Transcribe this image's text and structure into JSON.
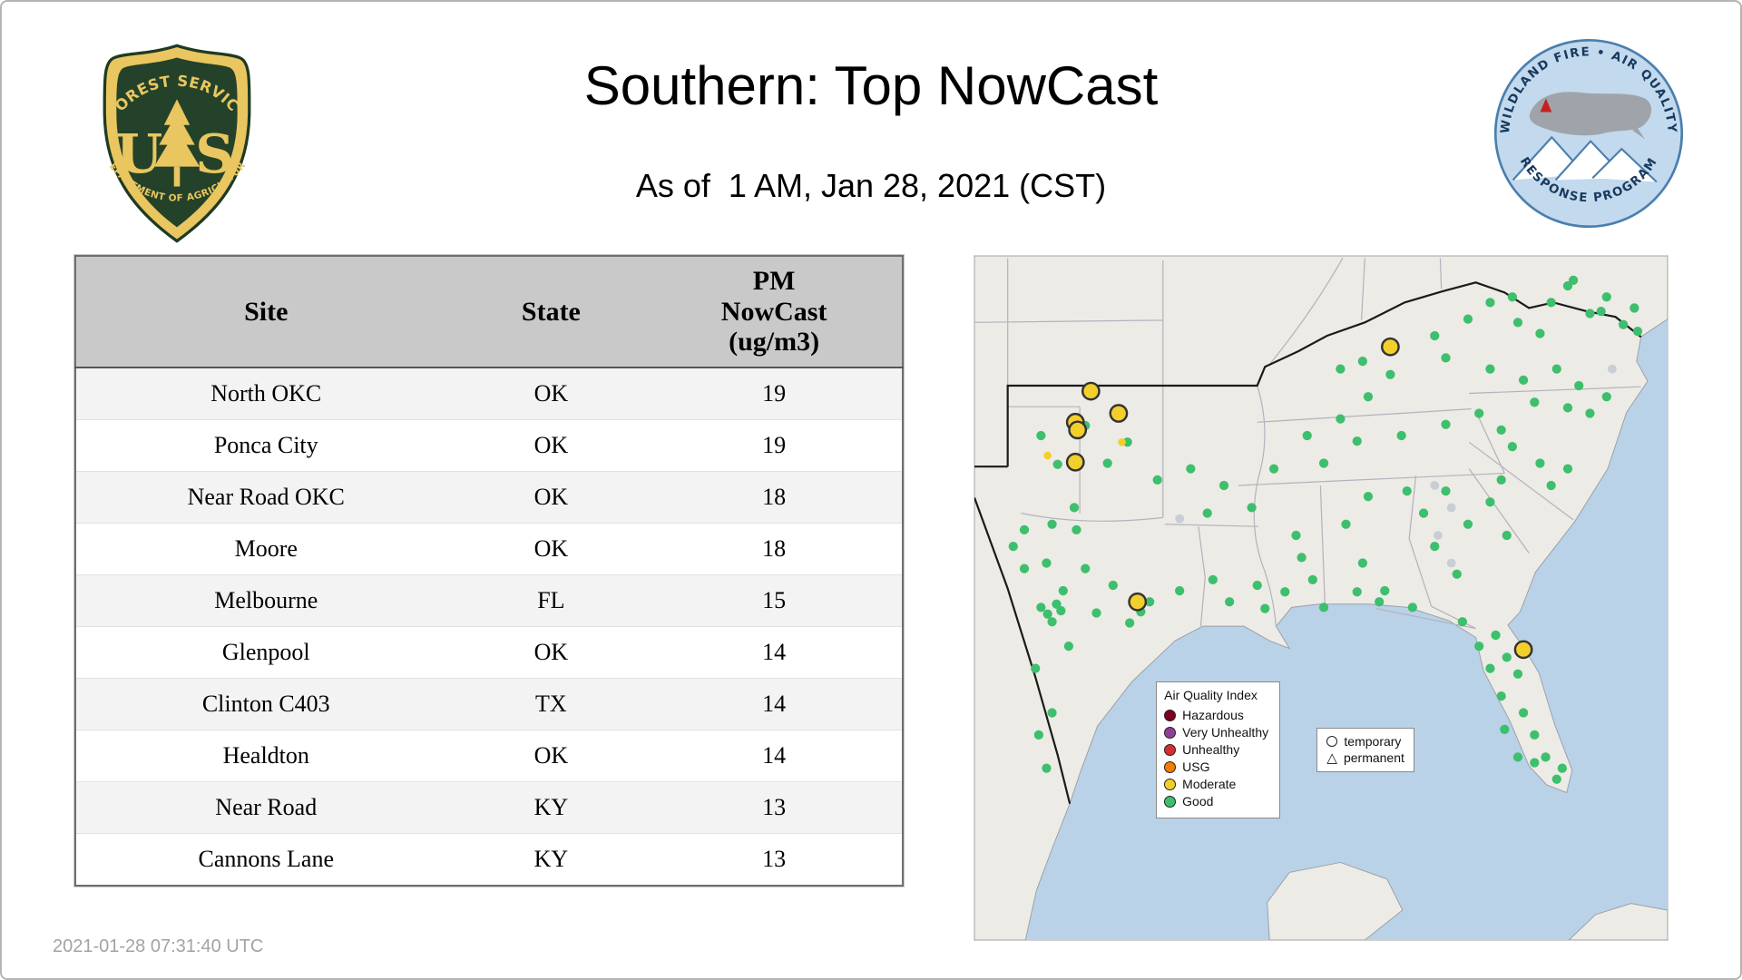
{
  "header": {
    "title": "Southern: Top NowCast",
    "subtitle": "As of  1 AM, Jan 28, 2021 (CST)"
  },
  "logos": {
    "forest_service": {
      "arc_top": "FOREST SERVICE",
      "letter_left": "U",
      "letter_right": "S",
      "arc_bottom": "DEPARTMENT OF AGRICULTURE"
    },
    "wildland": {
      "arc_top": "WILDLAND FIRE • AIR QUALITY",
      "arc_bottom": "RESPONSE PROGRAM"
    }
  },
  "table": {
    "columns": [
      "Site",
      "State",
      "PM NowCast (ug/m3)"
    ],
    "rows": [
      [
        "North OKC",
        "OK",
        "19"
      ],
      [
        "Ponca City",
        "OK",
        "19"
      ],
      [
        "Near Road OKC",
        "OK",
        "18"
      ],
      [
        "Moore",
        "OK",
        "18"
      ],
      [
        "Melbourne",
        "FL",
        "15"
      ],
      [
        "Glenpool",
        "OK",
        "14"
      ],
      [
        "Clinton C403",
        "TX",
        "14"
      ],
      [
        "Healdton",
        "OK",
        "14"
      ],
      [
        "Near Road",
        "KY",
        "13"
      ],
      [
        "Cannons Lane",
        "KY",
        "13"
      ]
    ]
  },
  "map": {
    "legend": {
      "title": "Air Quality Index",
      "items": [
        {
          "label": "Hazardous",
          "color": "#7e0023"
        },
        {
          "label": "Very Unhealthy",
          "color": "#8f3f97"
        },
        {
          "label": "Unhealthy",
          "color": "#d03030"
        },
        {
          "label": "USG",
          "color": "#f57c00"
        },
        {
          "label": "Moderate",
          "color": "#f2cf2a"
        },
        {
          "label": "Good",
          "color": "#3dbf6e"
        }
      ]
    },
    "marker_legend": {
      "temporary": "temporary",
      "permanent": "permanent"
    },
    "colors": {
      "water": "#b9d2e8",
      "land": "#edebe6",
      "good": "#3dbf6e",
      "moderate": "#f2cf2a",
      "gray": "#c9cdd4"
    },
    "markers": {
      "good": [
        [
          60,
          162
        ],
        [
          100,
          153
        ],
        [
          120,
          187
        ],
        [
          165,
          202
        ],
        [
          90,
          227
        ],
        [
          138,
          168
        ],
        [
          75,
          188
        ],
        [
          45,
          247
        ],
        [
          70,
          242
        ],
        [
          92,
          247
        ],
        [
          65,
          277
        ],
        [
          80,
          302
        ],
        [
          100,
          282
        ],
        [
          125,
          297
        ],
        [
          60,
          317
        ],
        [
          70,
          330
        ],
        [
          78,
          320
        ],
        [
          66,
          323
        ],
        [
          74,
          314
        ],
        [
          55,
          372
        ],
        [
          70,
          412
        ],
        [
          58,
          432
        ],
        [
          65,
          462
        ],
        [
          85,
          352
        ],
        [
          110,
          322
        ],
        [
          140,
          331
        ],
        [
          45,
          282
        ],
        [
          150,
          321
        ],
        [
          158,
          312
        ],
        [
          35,
          262
        ],
        [
          185,
          302
        ],
        [
          215,
          292
        ],
        [
          230,
          312
        ],
        [
          255,
          297
        ],
        [
          280,
          303
        ],
        [
          262,
          318
        ],
        [
          195,
          192
        ],
        [
          225,
          207
        ],
        [
          250,
          227
        ],
        [
          210,
          232
        ],
        [
          290,
          252
        ],
        [
          305,
          292
        ],
        [
          315,
          317
        ],
        [
          295,
          272
        ],
        [
          335,
          242
        ],
        [
          350,
          277
        ],
        [
          355,
          217
        ],
        [
          370,
          302
        ],
        [
          345,
          303
        ],
        [
          270,
          192
        ],
        [
          315,
          187
        ],
        [
          345,
          167
        ],
        [
          385,
          162
        ],
        [
          425,
          152
        ],
        [
          455,
          142
        ],
        [
          355,
          127
        ],
        [
          300,
          162
        ],
        [
          330,
          147
        ],
        [
          330,
          102
        ],
        [
          415,
          72
        ],
        [
          445,
          57
        ],
        [
          465,
          42
        ],
        [
          425,
          92
        ],
        [
          375,
          107
        ],
        [
          350,
          95
        ],
        [
          485,
          37
        ],
        [
          520,
          42
        ],
        [
          535,
          27
        ],
        [
          555,
          52
        ],
        [
          570,
          37
        ],
        [
          585,
          62
        ],
        [
          595,
          47
        ],
        [
          598,
          68
        ],
        [
          490,
          60
        ],
        [
          510,
          70
        ],
        [
          540,
          22
        ],
        [
          565,
          50
        ],
        [
          465,
          102
        ],
        [
          495,
          112
        ],
        [
          525,
          102
        ],
        [
          545,
          117
        ],
        [
          570,
          127
        ],
        [
          505,
          132
        ],
        [
          475,
          157
        ],
        [
          535,
          137
        ],
        [
          555,
          142
        ],
        [
          485,
          172
        ],
        [
          510,
          187
        ],
        [
          535,
          192
        ],
        [
          475,
          202
        ],
        [
          520,
          207
        ],
        [
          425,
          212
        ],
        [
          445,
          242
        ],
        [
          415,
          262
        ],
        [
          465,
          222
        ],
        [
          480,
          252
        ],
        [
          435,
          287
        ],
        [
          405,
          232
        ],
        [
          390,
          212
        ],
        [
          365,
          312
        ],
        [
          395,
          317
        ],
        [
          470,
          342
        ],
        [
          480,
          362
        ],
        [
          490,
          377
        ],
        [
          475,
          397
        ],
        [
          495,
          412
        ],
        [
          505,
          432
        ],
        [
          515,
          452
        ],
        [
          490,
          452
        ],
        [
          465,
          372
        ],
        [
          455,
          352
        ],
        [
          530,
          462
        ],
        [
          478,
          427
        ],
        [
          505,
          457
        ],
        [
          525,
          472
        ],
        [
          440,
          330
        ]
      ],
      "moderate_large": [
        [
          105,
          122
        ],
        [
          130,
          142
        ],
        [
          91,
          150
        ],
        [
          93,
          157
        ],
        [
          91,
          186
        ],
        [
          375,
          82
        ],
        [
          147,
          312
        ],
        [
          495,
          355
        ]
      ],
      "moderate_small": [
        [
          66,
          180
        ],
        [
          133,
          168
        ]
      ],
      "gray": [
        [
          415,
          207
        ],
        [
          430,
          227
        ],
        [
          430,
          277
        ],
        [
          185,
          237
        ],
        [
          575,
          102
        ],
        [
          418,
          252
        ]
      ]
    }
  },
  "footer": {
    "timestamp": "2021-01-28 07:31:40 UTC"
  }
}
